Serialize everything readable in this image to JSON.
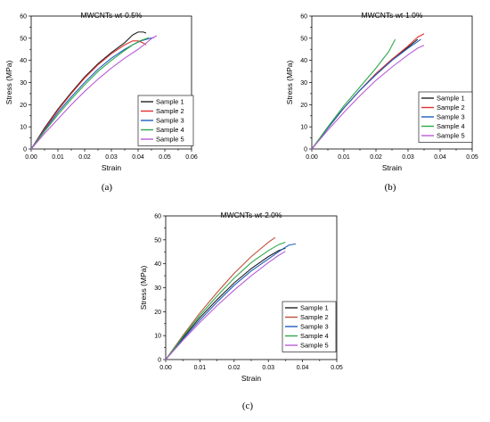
{
  "chart_data": [
    {
      "type": "line",
      "panel_label": "(a)",
      "title": "MWCNTs wt-0.5%",
      "xlabel": "Strain",
      "ylabel": "Stress (MPa)",
      "xlim": [
        0,
        0.06
      ],
      "ylim": [
        0,
        60
      ],
      "x_ticks": [
        "0.00",
        "0.01",
        "0.02",
        "0.03",
        "0.04",
        "0.05",
        "0.06"
      ],
      "y_ticks": [
        "0",
        "10",
        "20",
        "30",
        "40",
        "50",
        "60"
      ],
      "legend_position": "right-middle",
      "series": [
        {
          "name": "Sample 1",
          "color": "#222222",
          "points": [
            [
              0,
              0
            ],
            [
              0.005,
              9.5
            ],
            [
              0.01,
              18
            ],
            [
              0.015,
              25.5
            ],
            [
              0.02,
              32.5
            ],
            [
              0.025,
              38.5
            ],
            [
              0.03,
              43.5
            ],
            [
              0.035,
              48
            ],
            [
              0.038,
              51.5
            ],
            [
              0.04,
              52.8
            ],
            [
              0.042,
              52.8
            ],
            [
              0.043,
              52.3
            ]
          ]
        },
        {
          "name": "Sample 2",
          "color": "#e03030",
          "points": [
            [
              0,
              0
            ],
            [
              0.005,
              9
            ],
            [
              0.01,
              17.5
            ],
            [
              0.015,
              25
            ],
            [
              0.02,
              32
            ],
            [
              0.025,
              38
            ],
            [
              0.03,
              43
            ],
            [
              0.035,
              47
            ],
            [
              0.038,
              48.8
            ],
            [
              0.04,
              48.8
            ],
            [
              0.042,
              47.8
            ],
            [
              0.043,
              47
            ]
          ]
        },
        {
          "name": "Sample 3",
          "color": "#1f5fbf",
          "points": [
            [
              0,
              0
            ],
            [
              0.005,
              8.5
            ],
            [
              0.01,
              16.5
            ],
            [
              0.015,
              23.5
            ],
            [
              0.02,
              30
            ],
            [
              0.025,
              36
            ],
            [
              0.03,
              41
            ],
            [
              0.035,
              45
            ],
            [
              0.038,
              47
            ],
            [
              0.041,
              48.8
            ],
            [
              0.044,
              49.8
            ],
            [
              0.046,
              50.3
            ]
          ]
        },
        {
          "name": "Sample 4",
          "color": "#2ea84a",
          "points": [
            [
              0,
              0
            ],
            [
              0.005,
              8
            ],
            [
              0.01,
              15.5
            ],
            [
              0.015,
              22.5
            ],
            [
              0.02,
              29
            ],
            [
              0.025,
              35
            ],
            [
              0.03,
              40
            ],
            [
              0.035,
              44.5
            ],
            [
              0.038,
              47
            ],
            [
              0.041,
              49
            ],
            [
              0.044,
              50.2
            ]
          ]
        },
        {
          "name": "Sample 5",
          "color": "#b85cd6",
          "points": [
            [
              0,
              0
            ],
            [
              0.005,
              7
            ],
            [
              0.01,
              13.5
            ],
            [
              0.015,
              20
            ],
            [
              0.02,
              26
            ],
            [
              0.025,
              31.5
            ],
            [
              0.03,
              36.5
            ],
            [
              0.035,
              41
            ],
            [
              0.04,
              45
            ],
            [
              0.043,
              47.8
            ],
            [
              0.045,
              49.8
            ],
            [
              0.047,
              51.2
            ]
          ]
        }
      ]
    },
    {
      "type": "line",
      "panel_label": "(b)",
      "title": "MWCNTs wt-1.0%",
      "xlabel": "Strain",
      "ylabel": "Stress (MPa)",
      "xlim": [
        0,
        0.05
      ],
      "ylim": [
        0,
        60
      ],
      "x_ticks": [
        "0.00",
        "0.01",
        "0.02",
        "0.03",
        "0.04",
        "0.05"
      ],
      "y_ticks": [
        "0",
        "10",
        "20",
        "30",
        "40",
        "50",
        "60"
      ],
      "legend_position": "right-bottom",
      "series": [
        {
          "name": "Sample 1",
          "color": "#222222",
          "points": [
            [
              0,
              0
            ],
            [
              0.005,
              9.5
            ],
            [
              0.01,
              18.5
            ],
            [
              0.015,
              26.5
            ],
            [
              0.02,
              34
            ],
            [
              0.025,
              40.5
            ],
            [
              0.03,
              46
            ],
            [
              0.033,
              49.5
            ]
          ]
        },
        {
          "name": "Sample 2",
          "color": "#e03030",
          "points": [
            [
              0,
              0
            ],
            [
              0.005,
              9.5
            ],
            [
              0.01,
              18.5
            ],
            [
              0.015,
              26.5
            ],
            [
              0.02,
              34
            ],
            [
              0.025,
              40.5
            ],
            [
              0.03,
              46.5
            ],
            [
              0.033,
              50.5
            ],
            [
              0.035,
              52
            ]
          ]
        },
        {
          "name": "Sample 3",
          "color": "#1f5fbf",
          "points": [
            [
              0,
              0
            ],
            [
              0.005,
              9.5
            ],
            [
              0.01,
              18.5
            ],
            [
              0.015,
              26.5
            ],
            [
              0.02,
              33.5
            ],
            [
              0.025,
              40
            ],
            [
              0.03,
              45.5
            ],
            [
              0.034,
              49.5
            ]
          ]
        },
        {
          "name": "Sample 4",
          "color": "#2ea84a",
          "points": [
            [
              0,
              0
            ],
            [
              0.005,
              10
            ],
            [
              0.01,
              19.5
            ],
            [
              0.015,
              28
            ],
            [
              0.02,
              36.5
            ],
            [
              0.024,
              44
            ],
            [
              0.026,
              49.5
            ]
          ]
        },
        {
          "name": "Sample 5",
          "color": "#b85cd6",
          "points": [
            [
              0,
              0
            ],
            [
              0.005,
              8.5
            ],
            [
              0.01,
              16.5
            ],
            [
              0.015,
              24
            ],
            [
              0.02,
              31
            ],
            [
              0.025,
              37
            ],
            [
              0.03,
              42.5
            ],
            [
              0.033,
              45.5
            ],
            [
              0.035,
              46.8
            ]
          ]
        }
      ]
    },
    {
      "type": "line",
      "panel_label": "(c)",
      "title": "MWCNTs wt-2.0%",
      "xlabel": "Strain",
      "ylabel": "Stress (MPa)",
      "xlim": [
        0,
        0.05
      ],
      "ylim": [
        0,
        60
      ],
      "x_ticks": [
        "0.00",
        "0.01",
        "0.02",
        "0.03",
        "0.04",
        "0.05"
      ],
      "y_ticks": [
        "0",
        "10",
        "20",
        "30",
        "40",
        "50",
        "60"
      ],
      "legend_position": "right-bottom",
      "series": [
        {
          "name": "Sample 1",
          "color": "#222222",
          "points": [
            [
              0,
              0
            ],
            [
              0.005,
              9
            ],
            [
              0.01,
              17.5
            ],
            [
              0.015,
              25
            ],
            [
              0.02,
              32
            ],
            [
              0.025,
              38
            ],
            [
              0.03,
              43
            ],
            [
              0.033,
              45.5
            ],
            [
              0.035,
              46.5
            ]
          ]
        },
        {
          "name": "Sample 2",
          "color": "#c0503a",
          "points": [
            [
              0,
              0
            ],
            [
              0.005,
              10
            ],
            [
              0.01,
              19.5
            ],
            [
              0.015,
              28
            ],
            [
              0.02,
              36
            ],
            [
              0.025,
              43
            ],
            [
              0.03,
              49
            ],
            [
              0.032,
              51
            ]
          ]
        },
        {
          "name": "Sample 3",
          "color": "#1f5fbf",
          "points": [
            [
              0,
              0
            ],
            [
              0.005,
              8.5
            ],
            [
              0.01,
              16.5
            ],
            [
              0.015,
              24
            ],
            [
              0.02,
              31
            ],
            [
              0.025,
              37
            ],
            [
              0.03,
              42
            ],
            [
              0.034,
              46
            ],
            [
              0.036,
              47.8
            ],
            [
              0.038,
              48.3
            ]
          ]
        },
        {
          "name": "Sample 4",
          "color": "#2ea84a",
          "points": [
            [
              0,
              0
            ],
            [
              0.005,
              9.5
            ],
            [
              0.01,
              18.5
            ],
            [
              0.015,
              26.5
            ],
            [
              0.02,
              34
            ],
            [
              0.025,
              40.5
            ],
            [
              0.03,
              45.5
            ],
            [
              0.033,
              48
            ],
            [
              0.035,
              49
            ]
          ]
        },
        {
          "name": "Sample 5",
          "color": "#b85cd6",
          "points": [
            [
              0,
              0
            ],
            [
              0.005,
              8
            ],
            [
              0.01,
              15.5
            ],
            [
              0.015,
              22.5
            ],
            [
              0.02,
              29
            ],
            [
              0.025,
              35
            ],
            [
              0.03,
              40.5
            ],
            [
              0.033,
              43.5
            ],
            [
              0.035,
              45.2
            ]
          ]
        }
      ]
    }
  ]
}
